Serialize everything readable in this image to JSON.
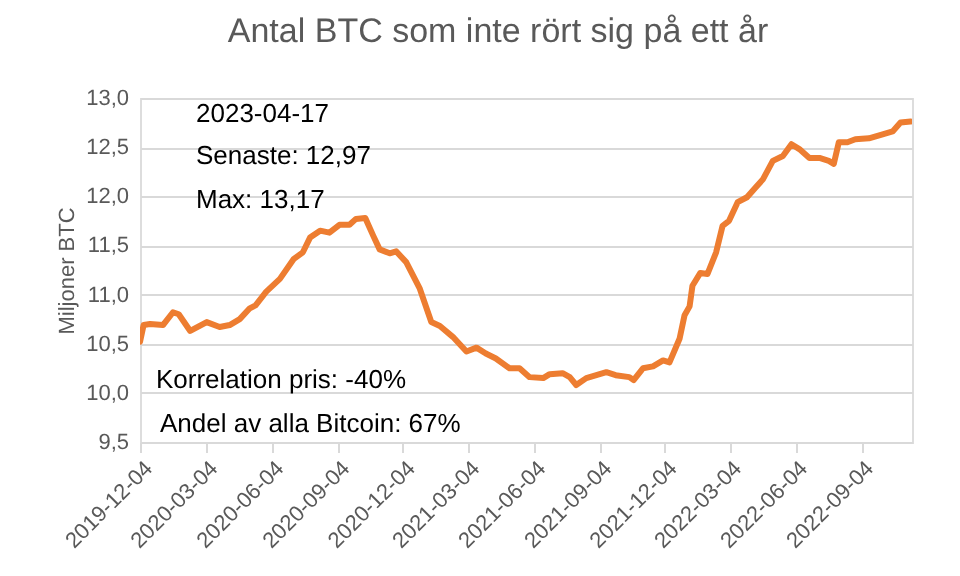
{
  "chart_data": {
    "type": "line",
    "title": "Antal BTC som inte rört sig på ett år",
    "ylabel": "Miljoner BTC",
    "x": [
      "2019-12-04",
      "2019-12-09",
      "2019-12-18",
      "2020-01-05",
      "2020-01-19",
      "2020-01-27",
      "2020-02-12",
      "2020-03-06",
      "2020-03-24",
      "2020-04-07",
      "2020-04-21",
      "2020-05-05",
      "2020-05-13",
      "2020-05-28",
      "2020-06-16",
      "2020-07-05",
      "2020-07-18",
      "2020-07-28",
      "2020-08-11",
      "2020-08-24",
      "2020-09-07",
      "2020-09-21",
      "2020-09-30",
      "2020-10-13",
      "2020-10-24",
      "2020-11-02",
      "2020-11-16",
      "2020-11-25",
      "2020-12-09",
      "2020-12-28",
      "2021-01-13",
      "2021-01-25",
      "2021-02-12",
      "2021-03-03",
      "2021-03-17",
      "2021-03-30",
      "2021-04-13",
      "2021-05-02",
      "2021-05-16",
      "2021-05-30",
      "2021-06-18",
      "2021-06-27",
      "2021-07-15",
      "2021-07-25",
      "2021-08-03",
      "2021-08-17",
      "2021-08-31",
      "2021-09-14",
      "2021-09-27",
      "2021-10-16",
      "2021-10-22",
      "2021-11-04",
      "2021-11-18",
      "2021-12-02",
      "2021-12-11",
      "2021-12-25",
      "2022-01-01",
      "2022-01-08",
      "2022-01-12",
      "2022-01-23",
      "2022-02-02",
      "2022-02-14",
      "2022-02-23",
      "2022-03-04",
      "2022-03-16",
      "2022-03-29",
      "2022-04-10",
      "2022-04-20",
      "2022-05-04",
      "2022-05-18",
      "2022-05-30",
      "2022-06-10",
      "2022-06-24",
      "2022-07-08",
      "2022-07-21",
      "2022-07-28",
      "2022-08-04",
      "2022-08-16",
      "2022-08-27",
      "2022-09-15",
      "2022-10-04",
      "2022-10-18",
      "2022-10-29",
      "2022-11-12"
    ],
    "series": [
      {
        "color": "#ed7d31",
        "values": [
          10.52,
          10.69,
          10.7,
          10.69,
          10.82,
          10.8,
          10.63,
          10.72,
          10.67,
          10.69,
          10.75,
          10.86,
          10.89,
          11.03,
          11.16,
          11.36,
          11.43,
          11.58,
          11.65,
          11.63,
          11.71,
          11.71,
          11.77,
          11.78,
          11.6,
          11.46,
          11.42,
          11.44,
          11.33,
          11.06,
          10.72,
          10.68,
          10.57,
          10.42,
          10.46,
          10.4,
          10.35,
          10.25,
          10.25,
          10.16,
          10.15,
          10.19,
          10.2,
          10.16,
          10.08,
          10.15,
          10.18,
          10.21,
          10.18,
          10.16,
          10.13,
          10.25,
          10.27,
          10.33,
          10.31,
          10.55,
          10.79,
          10.88,
          11.09,
          11.22,
          11.21,
          11.43,
          11.7,
          11.75,
          11.94,
          11.99,
          12.09,
          12.17,
          12.36,
          12.41,
          12.53,
          12.48,
          12.39,
          12.39,
          12.36,
          12.33,
          12.55,
          12.55,
          12.58,
          12.59,
          12.63,
          12.66,
          12.75,
          12.76
        ]
      }
    ],
    "xlim": [
      "2019-12-04",
      "2022-11-14"
    ],
    "xticks": [
      "2019-12-04",
      "2020-03-04",
      "2020-06-04",
      "2020-09-04",
      "2020-12-04",
      "2021-03-04",
      "2021-06-04",
      "2021-09-04",
      "2021-12-04",
      "2022-03-04",
      "2022-06-04",
      "2022-09-04"
    ],
    "ylim": [
      9.5,
      13.0
    ],
    "yticks": [
      {
        "value": 9.5,
        "label": "9,5"
      },
      {
        "value": 10.0,
        "label": "10,0"
      },
      {
        "value": 10.5,
        "label": "10,5"
      },
      {
        "value": 11.0,
        "label": "11,0"
      },
      {
        "value": 11.5,
        "label": "11,5"
      },
      {
        "value": 12.0,
        "label": "12,0"
      },
      {
        "value": 12.5,
        "label": "12,5"
      },
      {
        "value": 13.0,
        "label": "13,0"
      }
    ],
    "grid": "y",
    "marker": "none",
    "line_style": "solid",
    "annotations": [
      "2023-04-17",
      "Senaste: 12,97",
      "Max: 13,17",
      "Korrelation pris: -40%",
      "Andel av alla Bitcoin: 67%"
    ]
  }
}
